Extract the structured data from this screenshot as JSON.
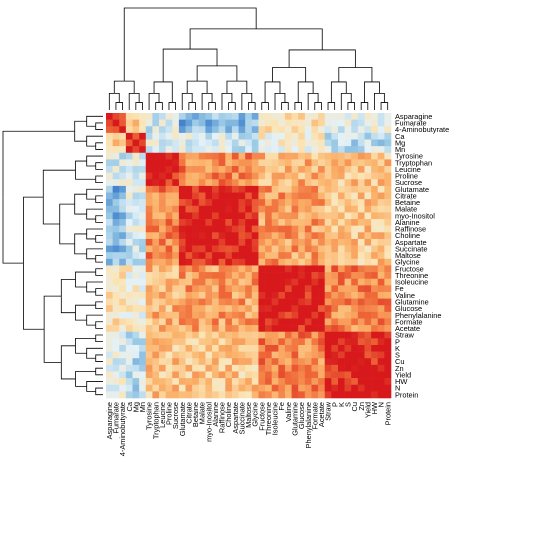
{
  "chart_data": {
    "type": "heatmap",
    "title": "",
    "xlabel": "",
    "ylabel": "",
    "clustered": true,
    "dendrograms": [
      "top",
      "left"
    ],
    "colorscale": [
      "#2c3fb0",
      "#4a8bd0",
      "#9ccbe6",
      "#e3f1f8",
      "#fbe4b4",
      "#fbb26a",
      "#f06c3a",
      "#d7191c"
    ],
    "value_range": [
      -1,
      1
    ],
    "column_labels": [
      "Asparagine",
      "Fumarate",
      "4-Aminobutyrate",
      "Ca",
      "Mg",
      "Mn",
      "Tyrosine",
      "Tryptophan",
      "Leucine",
      "Proline",
      "Sucrose",
      "Glutamate",
      "Citrate",
      "Betaine",
      "Malate",
      "myo-Inositol",
      "Alanine",
      "Raffinose",
      "Choline",
      "Aspartate",
      "Succinate",
      "Maltose",
      "Glycine",
      "Fructose",
      "Threonine",
      "Isoleucine",
      "Fe",
      "Valine",
      "Glutamine",
      "Glucose",
      "Phenylalanine",
      "Formate",
      "Acetate",
      "Straw",
      "P",
      "K",
      "S",
      "Cu",
      "Zn",
      "Yield",
      "HW",
      "N",
      "Protein"
    ],
    "row_labels": [
      "Asparagine",
      "Fumarate",
      "4-Aminobutyrate",
      "Ca",
      "Mg",
      "Mn",
      "Tyrosine",
      "Tryptophan",
      "Leucine",
      "Proline",
      "Sucrose",
      "Glutamate",
      "Citrate",
      "Betaine",
      "Malate",
      "myo-Inositol",
      "Alanine",
      "Raffinose",
      "Choline",
      "Aspartate",
      "Succinate",
      "Maltose",
      "Glycine",
      "Fructose",
      "Threonine",
      "Isoleucine",
      "Fe",
      "Valine",
      "Glutamine",
      "Glucose",
      "Phenylalanine",
      "Formate",
      "Acetate",
      "Straw",
      "P",
      "K",
      "S",
      "Cu",
      "Zn",
      "Yield",
      "HW",
      "N",
      "Protein"
    ],
    "block_correlations": [
      [
        1.0,
        0.3,
        -0.2,
        -0.5,
        0.1,
        -0.1
      ],
      [
        0.3,
        1.0,
        -0.1,
        -0.2,
        0.0,
        -0.3
      ],
      [
        -0.2,
        -0.1,
        1.0,
        0.6,
        0.4,
        0.3
      ],
      [
        -0.5,
        -0.2,
        0.6,
        1.0,
        0.5,
        0.3
      ],
      [
        0.1,
        0.0,
        0.4,
        0.5,
        1.0,
        0.6
      ],
      [
        -0.1,
        -0.3,
        0.3,
        0.3,
        0.6,
        1.0
      ]
    ],
    "block_membership": [
      0,
      0,
      0,
      1,
      1,
      1,
      2,
      2,
      2,
      2,
      2,
      3,
      3,
      3,
      3,
      3,
      3,
      3,
      3,
      3,
      3,
      3,
      3,
      4,
      4,
      4,
      4,
      4,
      4,
      4,
      4,
      4,
      4,
      5,
      5,
      5,
      5,
      5,
      5,
      5,
      5,
      5,
      5
    ]
  }
}
